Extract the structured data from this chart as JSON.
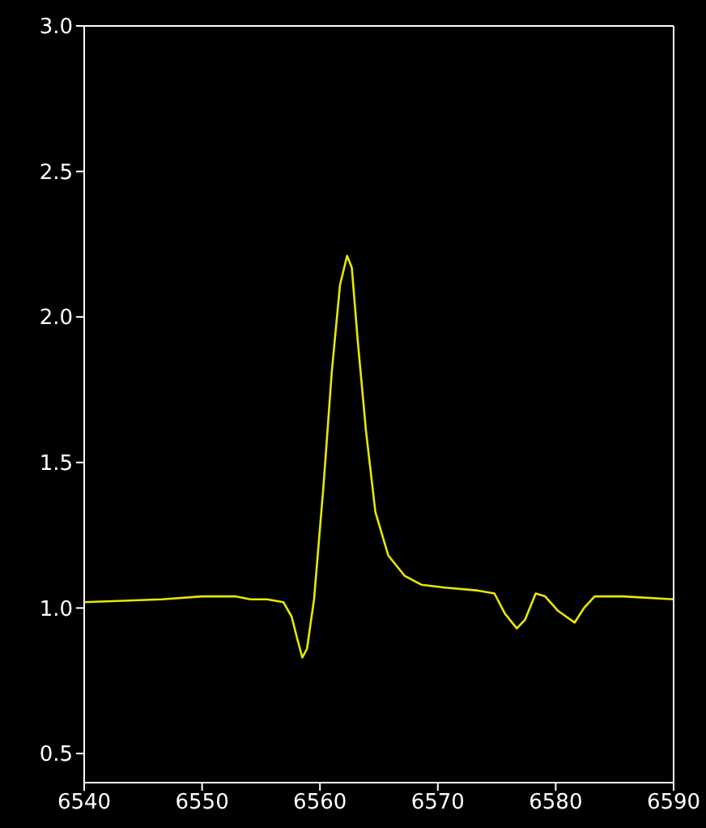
{
  "chart_data": {
    "type": "line",
    "x": [
      6540,
      6546.6,
      6550,
      6552.8,
      6554.1,
      6555.5,
      6556.9,
      6557.6,
      6558.1,
      6558.5,
      6558.9,
      6559.5,
      6560.3,
      6561.0,
      6561.7,
      6562.3,
      6562.7,
      6563.2,
      6563.9,
      6564.7,
      6565.8,
      6567.2,
      6568.6,
      6570.6,
      6573.4,
      6574.8,
      6575.7,
      6576.7,
      6577.4,
      6578.3,
      6579.1,
      6580.2,
      6581.6,
      6582.4,
      6583.3,
      6585.7,
      6590
    ],
    "series": [
      {
        "color": "#e8e800",
        "values": [
          1.02,
          1.03,
          1.04,
          1.04,
          1.03,
          1.03,
          1.02,
          0.97,
          0.89,
          0.83,
          0.86,
          1.03,
          1.42,
          1.81,
          2.11,
          2.21,
          2.17,
          1.92,
          1.61,
          1.33,
          1.18,
          1.11,
          1.08,
          1.07,
          1.06,
          1.05,
          0.98,
          0.93,
          0.96,
          1.05,
          1.04,
          0.99,
          0.95,
          1.0,
          1.04,
          1.04,
          1.03
        ]
      }
    ],
    "xlim": [
      6540,
      6590
    ],
    "xticks": [
      6540,
      6550,
      6560,
      6570,
      6580,
      6590
    ],
    "ylim": [
      0.4,
      3.0
    ],
    "yticks": [
      0.5,
      {
        "value": 1,
        "label": "1.0"
      },
      1.5,
      {
        "value": 2,
        "label": "2.0"
      },
      2.5,
      {
        "value": 3,
        "label": "3.0"
      }
    ],
    "grid": false,
    "legend": false,
    "marker": "none",
    "line_style": "solid"
  }
}
